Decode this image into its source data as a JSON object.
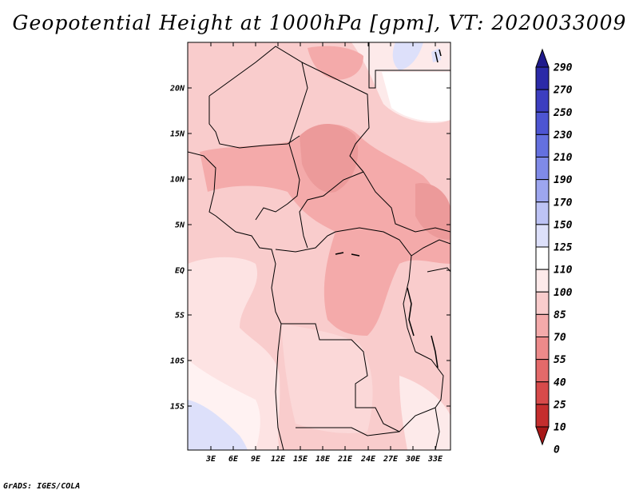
{
  "title": "Geopotential Height at 1000hPa [gpm], VT: 2020033009",
  "credit": "GrADS: IGES/COLA",
  "map": {
    "lat_labels": [
      "20N",
      "15N",
      "10N",
      "5N",
      "EQ",
      "5S",
      "10S",
      "15S"
    ],
    "lon_labels": [
      "3E",
      "6E",
      "9E",
      "12E",
      "15E",
      "18E",
      "21E",
      "24E",
      "27E",
      "30E",
      "33E"
    ]
  },
  "colorbar": {
    "levels": [
      "290",
      "270",
      "250",
      "230",
      "210",
      "190",
      "170",
      "150",
      "125",
      "110",
      "100",
      "85",
      "70",
      "55",
      "40",
      "25",
      "10",
      "0"
    ],
    "colors": [
      "#1f1a8c",
      "#2b2aa8",
      "#3c3ec0",
      "#4d55d2",
      "#6470df",
      "#7f8ae8",
      "#9da6ef",
      "#bdc3f5",
      "#dde0fa",
      "#ffffff",
      "#fdeaea",
      "#f9cccc",
      "#f4aaaa",
      "#ed8a8a",
      "#e46a6a",
      "#d74a4a",
      "#c52e2e",
      "#a81818"
    ]
  }
}
